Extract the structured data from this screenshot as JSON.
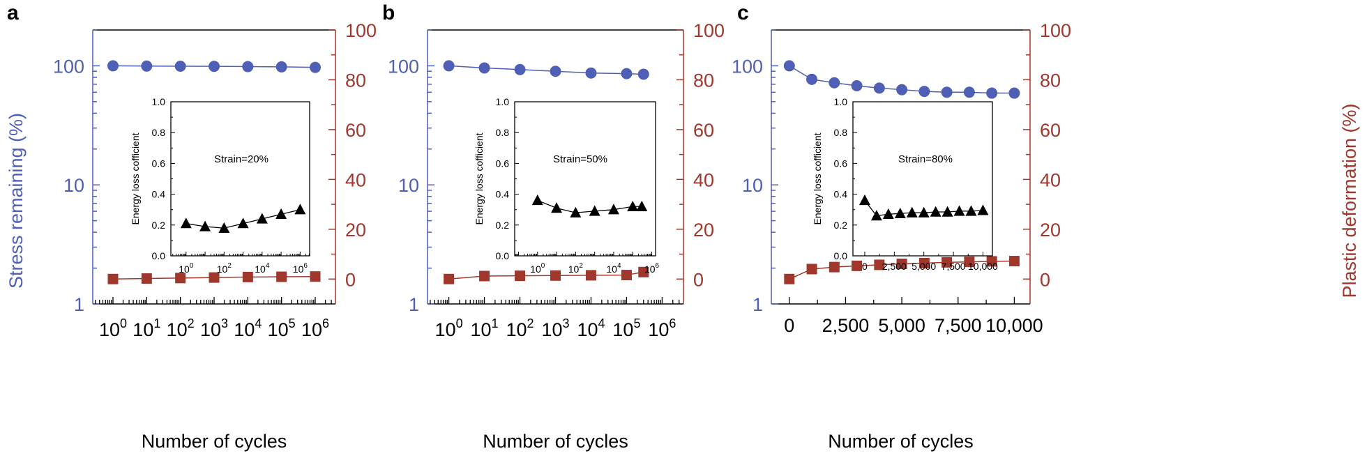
{
  "figure": {
    "left_axis_label": "Stress remaining (%)",
    "right_axis_label": "Plastic deformation (%)",
    "x_axis_label": "Number of cycles",
    "colors": {
      "stress": "#4f5fb5",
      "plastic": "#a0372d",
      "axis": "#000000",
      "inset": "#000000"
    }
  },
  "chart_data": [
    {
      "panel_label": "a",
      "type": "line",
      "xscale": "log",
      "xlim_exp": [
        -0.6,
        6.6
      ],
      "x_ticks": [
        {
          "exp": "0"
        },
        {
          "exp": "1"
        },
        {
          "exp": "2"
        },
        {
          "exp": "3"
        },
        {
          "exp": "4"
        },
        {
          "exp": "5"
        },
        {
          "exp": "6"
        }
      ],
      "xlabel": "Number of cycles",
      "ylabel_left": "Stress remaining (%)",
      "ylabel_right": "Plastic deformation (%)",
      "left_ylim": [
        1,
        200
      ],
      "left_ticks": [
        "1",
        "10",
        "100"
      ],
      "right_ylim": [
        -10,
        100
      ],
      "right_ticks": [
        "0",
        "20",
        "40",
        "60",
        "80",
        "100"
      ],
      "series": [
        {
          "axis": "left",
          "marker": "circle",
          "x": [
            1,
            10,
            100,
            1000,
            10000,
            100000,
            1000000
          ],
          "y": [
            100,
            99.5,
            99.2,
            99.0,
            98.5,
            98.0,
            97.0
          ]
        },
        {
          "axis": "right",
          "marker": "square",
          "x": [
            1,
            10,
            100,
            1000,
            10000,
            100000,
            1000000
          ],
          "y": [
            0,
            0.2,
            0.4,
            0.6,
            0.8,
            0.9,
            1.0
          ]
        }
      ],
      "inset": {
        "type": "line",
        "xscale": "log",
        "xlim_exp": [
          -0.8,
          6.5
        ],
        "x_ticks": [
          {
            "exp": "0"
          },
          {
            "exp": "2"
          },
          {
            "exp": "4"
          },
          {
            "exp": "6"
          }
        ],
        "ylabel": "Energy loss cofficient",
        "ylim": [
          0,
          1
        ],
        "y_ticks": [
          "0.0",
          "0.2",
          "0.4",
          "0.6",
          "0.8",
          "1.0"
        ],
        "annotation": "Strain=20%",
        "series": [
          {
            "marker": "triangle",
            "x": [
              1,
              10,
              100,
              1000,
              10000,
              100000,
              1000000
            ],
            "y": [
              0.21,
              0.19,
              0.18,
              0.21,
              0.24,
              0.27,
              0.3
            ]
          }
        ]
      }
    },
    {
      "panel_label": "b",
      "type": "line",
      "xscale": "log",
      "xlim_exp": [
        -0.6,
        6.6
      ],
      "x_ticks": [
        {
          "exp": "0"
        },
        {
          "exp": "1"
        },
        {
          "exp": "2"
        },
        {
          "exp": "3"
        },
        {
          "exp": "4"
        },
        {
          "exp": "5"
        },
        {
          "exp": "6"
        }
      ],
      "xlabel": "Number of cycles",
      "ylabel_left": "Stress remaining (%)",
      "ylabel_right": "Plastic deformation (%)",
      "left_ylim": [
        1,
        200
      ],
      "left_ticks": [
        "1",
        "10",
        "100"
      ],
      "right_ylim": [
        -10,
        100
      ],
      "right_ticks": [
        "0",
        "20",
        "40",
        "60",
        "80",
        "100"
      ],
      "series": [
        {
          "axis": "left",
          "marker": "circle",
          "x": [
            1,
            10,
            100,
            1000,
            10000,
            100000,
            300000
          ],
          "y": [
            100,
            96,
            93,
            90,
            87,
            86,
            85
          ]
        },
        {
          "axis": "right",
          "marker": "square",
          "x": [
            1,
            10,
            100,
            1000,
            10000,
            100000,
            300000
          ],
          "y": [
            0,
            1.2,
            1.3,
            1.4,
            1.5,
            1.6,
            2.8
          ]
        }
      ],
      "inset": {
        "type": "line",
        "xscale": "log",
        "xlim_exp": [
          -1.2,
          6.2
        ],
        "x_ticks": [
          {
            "exp": "0"
          },
          {
            "exp": "2"
          },
          {
            "exp": "4"
          },
          {
            "exp": "6"
          }
        ],
        "ylabel": "Energy loss cofficient",
        "ylim": [
          0,
          1
        ],
        "y_ticks": [
          "0.0",
          "0.2",
          "0.4",
          "0.6",
          "0.8",
          "1.0"
        ],
        "annotation": "Strain=50%",
        "series": [
          {
            "marker": "triangle",
            "x": [
              1,
              10,
              100,
              1000,
              10000,
              100000,
              300000
            ],
            "y": [
              0.36,
              0.31,
              0.28,
              0.29,
              0.3,
              0.32,
              0.32
            ]
          }
        ]
      }
    },
    {
      "panel_label": "c",
      "type": "line",
      "xscale": "linear",
      "xlim": [
        -800,
        10700
      ],
      "x_ticks": [
        "0",
        "2,500",
        "5,000",
        "7,500",
        "10,000"
      ],
      "x_tick_values": [
        0,
        2500,
        5000,
        7500,
        10000
      ],
      "xlabel": "Number of cycles",
      "ylabel_left": "Stress remaining (%)",
      "ylabel_right": "Plastic deformation (%)",
      "left_ylim": [
        1,
        200
      ],
      "left_ticks": [
        "1",
        "10",
        "100"
      ],
      "right_ylim": [
        -10,
        100
      ],
      "right_ticks": [
        "0",
        "20",
        "40",
        "60",
        "80",
        "100"
      ],
      "series": [
        {
          "axis": "left",
          "marker": "circle",
          "x": [
            0,
            1000,
            2000,
            3000,
            4000,
            5000,
            6000,
            7000,
            8000,
            9000,
            10000
          ],
          "y": [
            100,
            77,
            72,
            68,
            65,
            63,
            61,
            60,
            60,
            59,
            59
          ]
        },
        {
          "axis": "right",
          "marker": "square",
          "x": [
            0,
            1000,
            2000,
            3000,
            4000,
            5000,
            6000,
            7000,
            8000,
            9000,
            10000
          ],
          "y": [
            0,
            4,
            4.8,
            5.3,
            5.7,
            6.1,
            6.4,
            6.7,
            6.9,
            7.1,
            7.2
          ]
        }
      ],
      "inset": {
        "type": "line",
        "xscale": "linear",
        "xlim": [
          -1000,
          10800
        ],
        "x_ticks": [
          "0",
          "2,500",
          "5,000",
          "7,500",
          "10,000"
        ],
        "x_tick_values": [
          0,
          2500,
          5000,
          7500,
          10000
        ],
        "ylabel": "Energy loss cofficient",
        "ylim": [
          0,
          1
        ],
        "y_ticks": [
          "0.0",
          "0.2",
          "0.4",
          "0.6",
          "0.8",
          "1.0"
        ],
        "annotation": "Strain=80%",
        "series": [
          {
            "marker": "triangle",
            "x": [
              0,
              1000,
              2000,
              3000,
              4000,
              5000,
              6000,
              7000,
              8000,
              9000,
              10000
            ],
            "y": [
              0.36,
              0.26,
              0.27,
              0.275,
              0.28,
              0.28,
              0.285,
              0.285,
              0.29,
              0.29,
              0.295
            ]
          }
        ]
      }
    }
  ]
}
